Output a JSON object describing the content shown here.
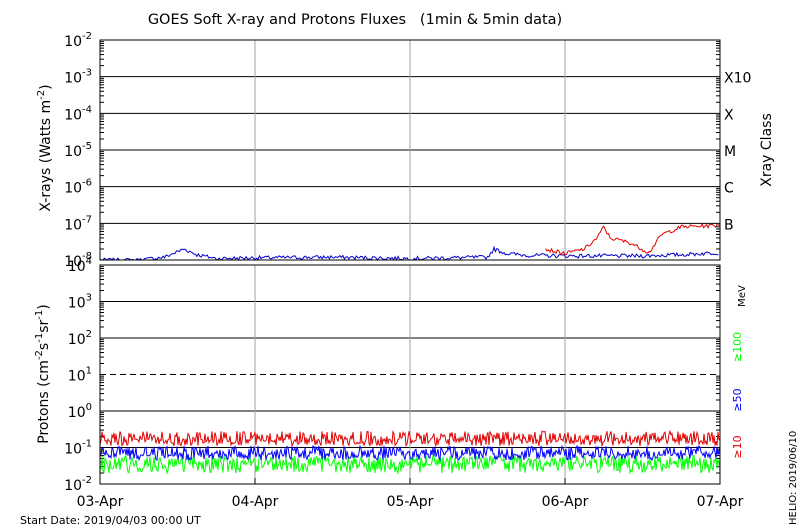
{
  "title": "GOES Soft X-ray and Protons Fluxes   (1min & 5min data)",
  "footer": {
    "start_date": "Start Date: 2019/04/03 00:00 UT",
    "credit": "HELIO: 2019/06/10"
  },
  "colors": {
    "xray_long": "#e00000",
    "xray_short": "#0000d0",
    "p10": "#e00000",
    "p50": "#0000ff",
    "p100": "#00ff00",
    "axis": "#000000",
    "day_grid": "#a0a0a0"
  },
  "chart_data": [
    {
      "type": "line",
      "panel": "xray",
      "ylabel_base": "X-rays (Watts m",
      "ylabel_exp": "-2",
      "ylabel_close": ")",
      "right_label": "Xray Class",
      "yscale": "log",
      "ylim": [
        1e-08,
        0.01
      ],
      "y_ticks": [
        {
          "base": "10",
          "exp": "-8",
          "value": 1e-08
        },
        {
          "base": "10",
          "exp": "-7",
          "value": 1e-07
        },
        {
          "base": "10",
          "exp": "-6",
          "value": 1e-06
        },
        {
          "base": "10",
          "exp": "-5",
          "value": 1e-05
        },
        {
          "base": "10",
          "exp": "-4",
          "value": 0.0001
        },
        {
          "base": "10",
          "exp": "-3",
          "value": 0.001
        },
        {
          "base": "10",
          "exp": "-2",
          "value": 0.01
        }
      ],
      "class_labels": [
        {
          "label": "B",
          "value": 1e-07
        },
        {
          "label": "C",
          "value": 1e-06
        },
        {
          "label": "M",
          "value": 1e-05
        },
        {
          "label": "X",
          "value": 0.0001
        },
        {
          "label": "X10",
          "value": 0.001
        }
      ],
      "x_range": [
        "2019-04-03",
        "2019-04-07"
      ],
      "series": [
        {
          "key": "xray_short",
          "points": [
            [
              "2019-04-03",
              1e-08
            ],
            [
              "2019-04-03T06",
              1e-08
            ],
            [
              "2019-04-03T10",
              1.2e-08
            ],
            [
              "2019-04-03T13",
              2e-08
            ],
            [
              "2019-04-03T15",
              1.4e-08
            ],
            [
              "2019-04-03T18",
              1.1e-08
            ],
            [
              "2019-04-04",
              1.15e-08
            ],
            [
              "2019-04-04T12",
              1.2e-08
            ],
            [
              "2019-04-05",
              1.1e-08
            ],
            [
              "2019-04-05T12",
              1.2e-08
            ],
            [
              "2019-04-05T13",
              2e-08
            ],
            [
              "2019-04-05T15",
              1.5e-08
            ],
            [
              "2019-04-05T18",
              1.35e-08
            ],
            [
              "2019-04-06",
              1.3e-08
            ],
            [
              "2019-04-06T12",
              1.3e-08
            ],
            [
              "2019-04-06T18",
              1.4e-08
            ],
            [
              "2019-04-07",
              1.6e-08
            ]
          ]
        },
        {
          "key": "xray_long",
          "points": [
            [
              "2019-04-05T21",
              2e-08
            ],
            [
              "2019-04-06",
              1.5e-08
            ],
            [
              "2019-04-06T03",
              2e-08
            ],
            [
              "2019-04-06T05",
              4e-08
            ],
            [
              "2019-04-06T06",
              8e-08
            ],
            [
              "2019-04-06T07",
              4e-08
            ],
            [
              "2019-04-06T10",
              3e-08
            ],
            [
              "2019-04-06T13",
              1.6e-08
            ],
            [
              "2019-04-06T15",
              5e-08
            ],
            [
              "2019-04-06T18",
              8e-08
            ],
            [
              "2019-04-07",
              9e-08
            ]
          ]
        }
      ]
    },
    {
      "type": "line",
      "panel": "protons",
      "ylabel_base": "Protons (cm",
      "ylabel_sup1": "-2",
      "ylabel_mid": "s",
      "ylabel_sup2": "-1",
      "ylabel_mid2": "sr",
      "ylabel_sup3": "-1",
      "ylabel_close": ")",
      "yscale": "log",
      "ylim": [
        0.01,
        10000
      ],
      "y_ticks": [
        {
          "base": "10",
          "exp": "-2",
          "value": 0.01
        },
        {
          "base": "10",
          "exp": "-1",
          "value": 0.1
        },
        {
          "base": "10",
          "exp": "0",
          "value": 1
        },
        {
          "base": "10",
          "exp": "1",
          "value": 10
        },
        {
          "base": "10",
          "exp": "2",
          "value": 100
        },
        {
          "base": "10",
          "exp": "3",
          "value": 1000
        },
        {
          "base": "10",
          "exp": "4",
          "value": 10000
        }
      ],
      "threshold_value": 10,
      "energy_unit": "MeV",
      "x_range": [
        "2019-04-03",
        "2019-04-07"
      ],
      "x_ticks": [
        "03-Apr",
        "04-Apr",
        "05-Apr",
        "06-Apr",
        "07-Apr"
      ],
      "series": [
        {
          "key": "p10",
          "name": "≥10",
          "baseline": 0.16,
          "low": 0.11,
          "high": 0.28
        },
        {
          "key": "p50",
          "name": "≥50",
          "baseline": 0.065,
          "low": 0.045,
          "high": 0.11
        },
        {
          "key": "p100",
          "name": "≥100",
          "baseline": 0.035,
          "low": 0.02,
          "high": 0.06
        }
      ]
    }
  ]
}
